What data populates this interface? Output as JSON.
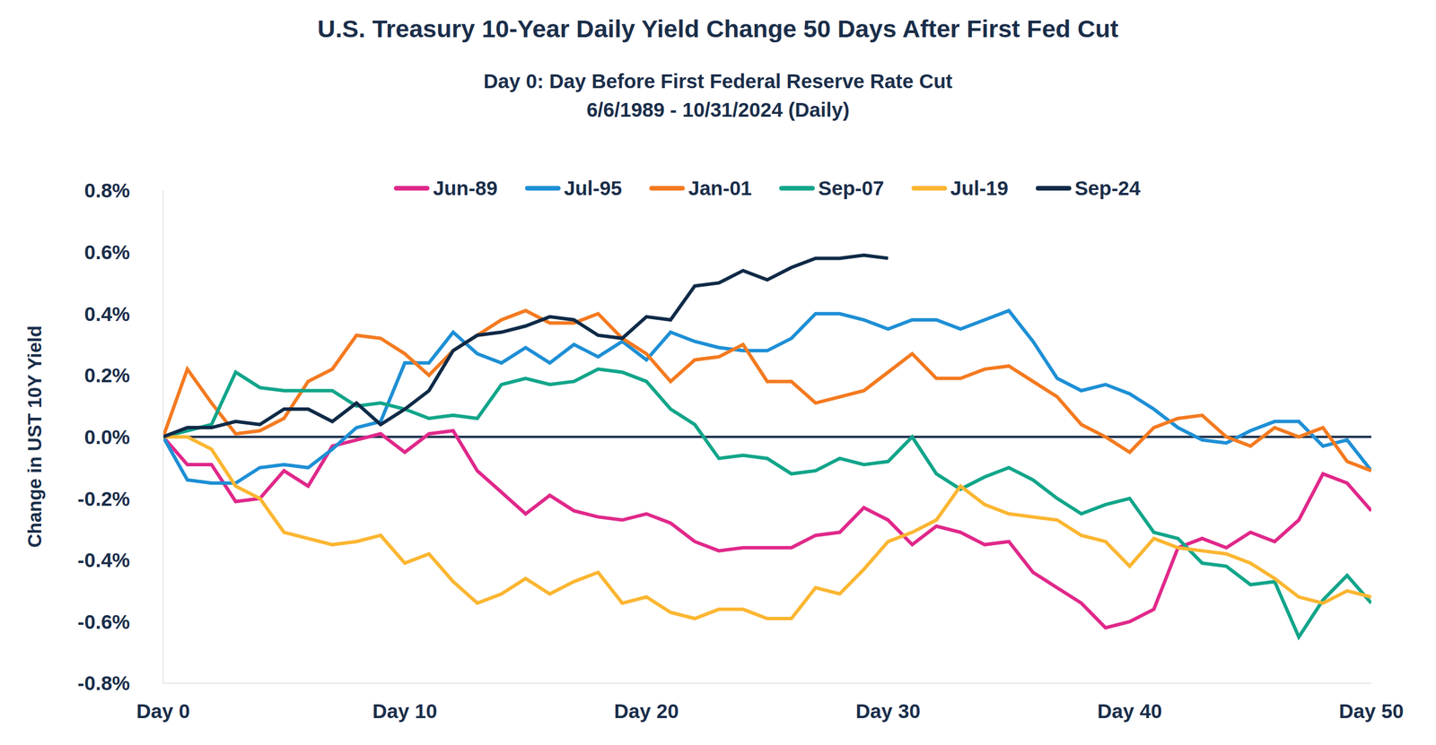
{
  "chart_data": {
    "type": "line",
    "title": "U.S. Treasury 10-Year Daily Yield Change 50 Days After First Fed Cut",
    "subtitle": [
      "Day 0: Day Before First Federal Reserve Rate Cut",
      "6/6/1989 - 10/31/2024 (Daily)"
    ],
    "y_label": "Change in UST 10Y Yield",
    "x": [
      0,
      1,
      2,
      3,
      4,
      5,
      6,
      7,
      8,
      9,
      10,
      11,
      12,
      13,
      14,
      15,
      16,
      17,
      18,
      19,
      20,
      21,
      22,
      23,
      24,
      25,
      26,
      27,
      28,
      29,
      30,
      31,
      32,
      33,
      34,
      35,
      36,
      37,
      38,
      39,
      40,
      41,
      42,
      43,
      44,
      45,
      46,
      47,
      48,
      49,
      50
    ],
    "xlim": [
      0,
      50
    ],
    "xticks": [
      {
        "value": 0,
        "label": "Day 0"
      },
      {
        "value": 10,
        "label": "Day 10"
      },
      {
        "value": 20,
        "label": "Day 20"
      },
      {
        "value": 30,
        "label": "Day 30"
      },
      {
        "value": 40,
        "label": "Day 40"
      },
      {
        "value": 50,
        "label": "Day 50"
      }
    ],
    "ylim": [
      -0.8,
      0.8
    ],
    "yticks": [
      {
        "value": -0.8,
        "label": "-0.8%"
      },
      {
        "value": -0.6,
        "label": "-0.6%"
      },
      {
        "value": -0.4,
        "label": "-0.4%"
      },
      {
        "value": -0.2,
        "label": "-0.2%"
      },
      {
        "value": 0,
        "label": "0.0%"
      },
      {
        "value": 0.2,
        "label": "0.2%"
      },
      {
        "value": 0.4,
        "label": "0.4%"
      },
      {
        "value": 0.6,
        "label": "0.6%"
      },
      {
        "value": 0.8,
        "label": "0.8%"
      }
    ],
    "grid": false,
    "legend": "top",
    "series": [
      {
        "name": "Jun-89",
        "color": "#e0288a",
        "values": [
          0,
          -0.09,
          -0.09,
          -0.21,
          -0.2,
          -0.11,
          -0.16,
          -0.03,
          -0.01,
          0.01,
          -0.05,
          0.01,
          0.02,
          -0.11,
          -0.18,
          -0.25,
          -0.19,
          -0.24,
          -0.26,
          -0.27,
          -0.25,
          -0.28,
          -0.34,
          -0.37,
          -0.36,
          -0.36,
          -0.36,
          -0.32,
          -0.31,
          -0.23,
          -0.27,
          -0.35,
          -0.29,
          -0.31,
          -0.35,
          -0.34,
          -0.44,
          -0.49,
          -0.54,
          -0.62,
          -0.6,
          -0.56,
          -0.36,
          -0.33,
          -0.36,
          -0.31,
          -0.34,
          -0.27,
          -0.12,
          -0.15,
          -0.24
        ]
      },
      {
        "name": "Jul-95",
        "color": "#1e8fd5",
        "values": [
          0,
          -0.14,
          -0.15,
          -0.15,
          -0.1,
          -0.09,
          -0.1,
          -0.04,
          0.03,
          0.05,
          0.24,
          0.24,
          0.34,
          0.27,
          0.24,
          0.29,
          0.24,
          0.3,
          0.26,
          0.31,
          0.25,
          0.34,
          0.31,
          0.29,
          0.28,
          0.28,
          0.32,
          0.4,
          0.4,
          0.38,
          0.35,
          0.38,
          0.38,
          0.35,
          0.38,
          0.41,
          0.31,
          0.19,
          0.15,
          0.17,
          0.14,
          0.09,
          0.03,
          -0.01,
          -0.02,
          0.02,
          0.05,
          0.05,
          -0.03,
          -0.01,
          -0.11
        ]
      },
      {
        "name": "Jan-01",
        "color": "#f47a20",
        "values": [
          0,
          0.22,
          0.11,
          0.01,
          0.02,
          0.06,
          0.18,
          0.22,
          0.33,
          0.32,
          0.27,
          0.2,
          0.28,
          0.33,
          0.38,
          0.41,
          0.37,
          0.37,
          0.4,
          0.32,
          0.27,
          0.18,
          0.25,
          0.26,
          0.3,
          0.18,
          0.18,
          0.11,
          0.13,
          0.15,
          0.21,
          0.27,
          0.19,
          0.19,
          0.22,
          0.23,
          0.18,
          0.13,
          0.04,
          0,
          -0.05,
          0.03,
          0.06,
          0.07,
          0,
          -0.03,
          0.03,
          0,
          0.03,
          -0.08,
          -0.11
        ]
      },
      {
        "name": "Sep-07",
        "color": "#12a58a",
        "values": [
          0,
          0.02,
          0.04,
          0.21,
          0.16,
          0.15,
          0.15,
          0.15,
          0.1,
          0.11,
          0.09,
          0.06,
          0.07,
          0.06,
          0.17,
          0.19,
          0.17,
          0.18,
          0.22,
          0.21,
          0.18,
          0.09,
          0.04,
          -0.07,
          -0.06,
          -0.07,
          -0.12,
          -0.11,
          -0.07,
          -0.09,
          -0.08,
          0,
          -0.12,
          -0.17,
          -0.13,
          -0.1,
          -0.14,
          -0.2,
          -0.25,
          -0.22,
          -0.2,
          -0.31,
          -0.33,
          -0.41,
          -0.42,
          -0.48,
          -0.47,
          -0.65,
          -0.53,
          -0.45,
          -0.54
        ]
      },
      {
        "name": "Jul-19",
        "color": "#fbb631",
        "values": [
          0,
          0,
          -0.04,
          -0.16,
          -0.2,
          -0.31,
          -0.33,
          -0.35,
          -0.34,
          -0.32,
          -0.41,
          -0.38,
          -0.47,
          -0.54,
          -0.51,
          -0.46,
          -0.51,
          -0.47,
          -0.44,
          -0.54,
          -0.52,
          -0.57,
          -0.59,
          -0.56,
          -0.56,
          -0.59,
          -0.59,
          -0.49,
          -0.51,
          -0.43,
          -0.34,
          -0.31,
          -0.27,
          -0.16,
          -0.22,
          -0.25,
          -0.26,
          -0.27,
          -0.32,
          -0.34,
          -0.42,
          -0.33,
          -0.36,
          -0.37,
          -0.38,
          -0.41,
          -0.46,
          -0.52,
          -0.54,
          -0.5,
          -0.52
        ]
      },
      {
        "name": "Sep-24",
        "color": "#0f2a47",
        "values": [
          0,
          0.03,
          0.03,
          0.05,
          0.04,
          0.09,
          0.09,
          0.05,
          0.11,
          0.04,
          0.09,
          0.15,
          0.28,
          0.33,
          0.34,
          0.36,
          0.39,
          0.38,
          0.33,
          0.32,
          0.39,
          0.38,
          0.49,
          0.5,
          0.54,
          0.51,
          0.55,
          0.58,
          0.58,
          0.59,
          0.58,
          null,
          null,
          null,
          null,
          null,
          null,
          null,
          null,
          null,
          null,
          null,
          null,
          null,
          null,
          null,
          null,
          null,
          null,
          null,
          null
        ]
      }
    ]
  }
}
